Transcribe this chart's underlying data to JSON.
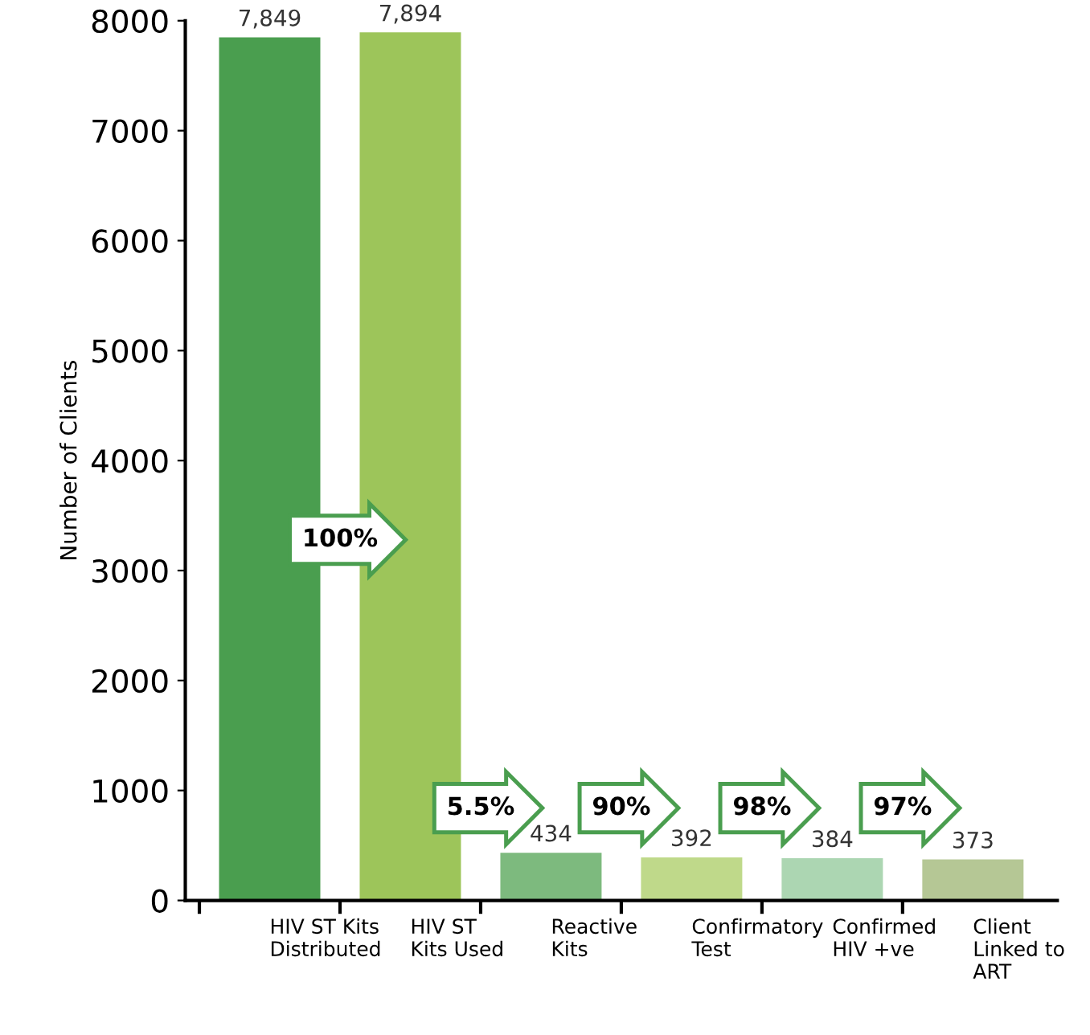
{
  "chart_data": {
    "type": "bar",
    "ylabel": "Number of Clients",
    "categories": [
      "HIV ST Kits\nDistributed",
      "HIV ST\nKits Used",
      "Reactive\nKits",
      "Confirmatory\nTest",
      "Confirmed\nHIV +ve",
      "Client\nLinked to\nART"
    ],
    "values": [
      7849,
      7894,
      434,
      392,
      384,
      373
    ],
    "value_labels": [
      "7,849",
      "7,894",
      "434",
      "392",
      "384",
      "373"
    ],
    "colors": [
      "#4a9e4f",
      "#9dc55a",
      "#7dba7e",
      "#bfd98a",
      "#acd6b2",
      "#b5c795"
    ],
    "ylim": [
      0,
      8000
    ],
    "yticks": [
      0,
      1000,
      2000,
      3000,
      4000,
      5000,
      6000,
      7000,
      8000
    ],
    "annotations": [
      "100%",
      "5.5%",
      "90%",
      "98%",
      "97%"
    ],
    "grid": false,
    "legend": false
  }
}
